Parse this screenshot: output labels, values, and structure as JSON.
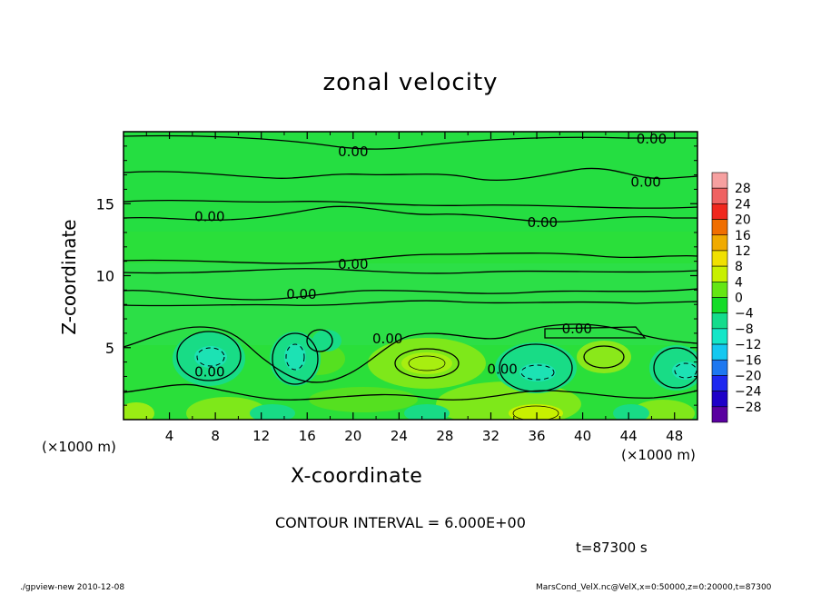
{
  "chart_data": {
    "type": "heatmap",
    "title": "zonal velocity",
    "xlabel": "X-coordinate",
    "ylabel": "Z-coordinate",
    "x_unit": "(×1000 m)",
    "x_ticks": [
      4,
      8,
      12,
      16,
      20,
      24,
      28,
      32,
      36,
      40,
      44,
      48
    ],
    "y_ticks": [
      5,
      10,
      15
    ],
    "xlim": [
      0,
      50
    ],
    "ylim": [
      0,
      20
    ],
    "contour_labels": [
      {
        "text": "0.00",
        "x": 20,
        "y": 18.6
      },
      {
        "text": "0.00",
        "x": 46,
        "y": 19.5
      },
      {
        "text": "0.00",
        "x": 45.5,
        "y": 16.5
      },
      {
        "text": "0.00",
        "x": 7.5,
        "y": 14.1
      },
      {
        "text": "0.00",
        "x": 36.5,
        "y": 13.7
      },
      {
        "text": "0.00",
        "x": 20,
        "y": 10.8
      },
      {
        "text": "0.00",
        "x": 15.5,
        "y": 8.7
      },
      {
        "text": "0.00",
        "x": 23,
        "y": 5.6
      },
      {
        "text": "0.00",
        "x": 39.5,
        "y": 6.3
      },
      {
        "text": "0.00",
        "x": 7.5,
        "y": 3.3
      },
      {
        "text": "0.00",
        "x": 33,
        "y": 3.5
      }
    ],
    "colorbar": {
      "levels": [
        "28",
        "24",
        "20",
        "16",
        "12",
        "8",
        "4",
        "0",
        "−4",
        "−8",
        "−12",
        "−16",
        "−20",
        "−24",
        "−28"
      ],
      "colors": [
        "#f6a0a0",
        "#ef6262",
        "#f0281e",
        "#f06e00",
        "#f0aa00",
        "#f0e000",
        "#c8f000",
        "#64e614",
        "#14dc28",
        "#14dc8c",
        "#14e6c8",
        "#14c8f0",
        "#1e78f0",
        "#1e28f0",
        "#1e00c8",
        "#5a00a0"
      ]
    },
    "contour_interval": "CONTOUR INTERVAL = 6.000E+00",
    "time": "t=87300 s"
  },
  "footer": {
    "left": "./gpview-new  2010-12-08",
    "right": "MarsCond_VelX.nc@VelX,x=0:50000,z=0:20000,t=87300"
  }
}
